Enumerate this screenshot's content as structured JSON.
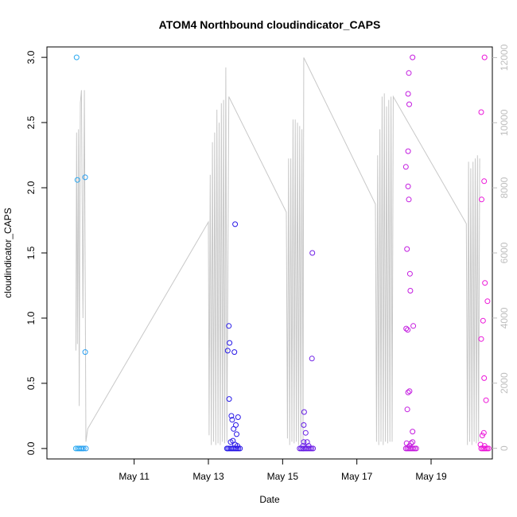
{
  "chart_data": {
    "type": "scatter",
    "title": "ATOM4 Northbound cloudindicator_CAPS",
    "xlabel": "Date",
    "ylabel": "cloudindicator_CAPS",
    "x_unit": "days since May 9 00:00",
    "xlim": [
      -0.35,
      11.65
    ],
    "ylim": [
      -0.08,
      3.08
    ],
    "y2lim": [
      -328,
      12328
    ],
    "x_ticks": [
      {
        "value": 2,
        "label": "May 11"
      },
      {
        "value": 4,
        "label": "May 13"
      },
      {
        "value": 6,
        "label": "May 15"
      },
      {
        "value": 8,
        "label": "May 17"
      },
      {
        "value": 10,
        "label": "May 19"
      }
    ],
    "y_ticks": [
      {
        "value": 0.0,
        "label": "0.0"
      },
      {
        "value": 0.5,
        "label": "0.5"
      },
      {
        "value": 1.0,
        "label": "1.0"
      },
      {
        "value": 1.5,
        "label": "1.5"
      },
      {
        "value": 2.0,
        "label": "2.0"
      },
      {
        "value": 2.5,
        "label": "2.5"
      },
      {
        "value": 3.0,
        "label": "3.0"
      }
    ],
    "y2_ticks": [
      {
        "value": 0,
        "label": "0"
      },
      {
        "value": 2000,
        "label": "2000"
      },
      {
        "value": 4000,
        "label": "4000"
      },
      {
        "value": 6000,
        "label": "6000"
      },
      {
        "value": 8000,
        "label": "8000"
      },
      {
        "value": 10000,
        "label": "10000"
      },
      {
        "value": 12000,
        "label": "12000"
      }
    ],
    "colors": {
      "secondary_line": "#c8c8c8",
      "gradient": [
        "#2aaaf0",
        "#1f44f5",
        "#2a14e6",
        "#7a22e6",
        "#c21ce0",
        "#ee14d8"
      ]
    },
    "point_style": "open-circle",
    "secondary_series": {
      "name": "secondary axis series",
      "points": [
        [
          0.43,
          3000
        ],
        [
          0.45,
          9700
        ],
        [
          0.47,
          3200
        ],
        [
          0.5,
          9800
        ],
        [
          0.52,
          1300
        ],
        [
          0.55,
          10600
        ],
        [
          0.58,
          11000
        ],
        [
          0.62,
          4000
        ],
        [
          0.66,
          11000
        ],
        [
          0.7,
          200
        ],
        [
          0.75,
          600
        ],
        [
          4.0,
          6950
        ],
        [
          4.02,
          400
        ],
        [
          4.05,
          8400
        ],
        [
          4.08,
          100
        ],
        [
          4.11,
          9400
        ],
        [
          4.14,
          200
        ],
        [
          4.17,
          9700
        ],
        [
          4.2,
          100
        ],
        [
          4.23,
          10400
        ],
        [
          4.26,
          150
        ],
        [
          4.29,
          10000
        ],
        [
          4.32,
          100
        ],
        [
          4.35,
          10600
        ],
        [
          4.38,
          200
        ],
        [
          4.41,
          10700
        ],
        [
          4.44,
          150
        ],
        [
          4.47,
          11700
        ],
        [
          4.5,
          200
        ],
        [
          4.55,
          10800
        ],
        [
          6.1,
          7250
        ],
        [
          6.13,
          300
        ],
        [
          6.16,
          8900
        ],
        [
          6.19,
          100
        ],
        [
          6.22,
          8900
        ],
        [
          6.25,
          200
        ],
        [
          6.28,
          10100
        ],
        [
          6.31,
          150
        ],
        [
          6.34,
          10100
        ],
        [
          6.37,
          200
        ],
        [
          6.4,
          10000
        ],
        [
          6.43,
          100
        ],
        [
          6.46,
          9900
        ],
        [
          6.49,
          200
        ],
        [
          6.52,
          9800
        ],
        [
          6.55,
          150
        ],
        [
          6.57,
          12000
        ],
        [
          8.5,
          7500
        ],
        [
          8.53,
          200
        ],
        [
          8.56,
          9000
        ],
        [
          8.59,
          100
        ],
        [
          8.62,
          9800
        ],
        [
          8.65,
          200
        ],
        [
          8.68,
          10800
        ],
        [
          8.71,
          100
        ],
        [
          8.74,
          10900
        ],
        [
          8.77,
          200
        ],
        [
          8.8,
          10500
        ],
        [
          8.83,
          150
        ],
        [
          8.86,
          10700
        ],
        [
          8.89,
          200
        ],
        [
          8.92,
          10800
        ],
        [
          8.95,
          200
        ],
        [
          8.98,
          10800
        ],
        [
          10.95,
          6900
        ],
        [
          10.98,
          100
        ],
        [
          11.01,
          8800
        ],
        [
          11.04,
          200
        ],
        [
          11.07,
          8600
        ],
        [
          11.1,
          100
        ],
        [
          11.13,
          8800
        ],
        [
          11.16,
          200
        ],
        [
          11.19,
          8900
        ],
        [
          11.22,
          150
        ],
        [
          11.25,
          9000
        ],
        [
          11.28,
          200
        ],
        [
          11.31,
          8900
        ]
      ]
    },
    "series": [
      {
        "name": "cloudindicator_CAPS",
        "points": [
          [
            0.45,
            3.0
          ],
          [
            0.47,
            2.06
          ],
          [
            0.68,
            2.08
          ],
          [
            0.68,
            0.74
          ],
          [
            0.43,
            0
          ],
          [
            0.48,
            0
          ],
          [
            0.52,
            0
          ],
          [
            0.56,
            0
          ],
          [
            0.6,
            0
          ],
          [
            0.64,
            0
          ],
          [
            0.7,
            0
          ],
          [
            4.55,
            0.94
          ],
          [
            4.52,
            0.75
          ],
          [
            4.57,
            0.81
          ],
          [
            4.62,
            0.25
          ],
          [
            4.64,
            0.22
          ],
          [
            4.68,
            0.15
          ],
          [
            4.7,
            0.74
          ],
          [
            4.72,
            1.72
          ],
          [
            4.74,
            0.18
          ],
          [
            4.76,
            0.11
          ],
          [
            4.8,
            0.24
          ],
          [
            4.56,
            0.38
          ],
          [
            4.6,
            0.05
          ],
          [
            4.66,
            0.06
          ],
          [
            4.72,
            0.03
          ],
          [
            4.78,
            0.02
          ],
          [
            4.5,
            0
          ],
          [
            4.53,
            0
          ],
          [
            4.57,
            0
          ],
          [
            4.61,
            0
          ],
          [
            4.65,
            0
          ],
          [
            4.69,
            0
          ],
          [
            4.73,
            0
          ],
          [
            4.77,
            0
          ],
          [
            4.81,
            0
          ],
          [
            4.85,
            0
          ],
          [
            6.58,
            0.28
          ],
          [
            6.57,
            0.18
          ],
          [
            6.62,
            0.12
          ],
          [
            6.57,
            0.05
          ],
          [
            6.66,
            0.05
          ],
          [
            6.8,
            1.5
          ],
          [
            6.79,
            0.69
          ],
          [
            6.55,
            0.02
          ],
          [
            6.7,
            0.02
          ],
          [
            6.46,
            0
          ],
          [
            6.5,
            0
          ],
          [
            6.54,
            0
          ],
          [
            6.58,
            0
          ],
          [
            6.62,
            0
          ],
          [
            6.66,
            0
          ],
          [
            6.7,
            0
          ],
          [
            6.74,
            0
          ],
          [
            6.78,
            0
          ],
          [
            6.82,
            0
          ],
          [
            9.5,
            3.0
          ],
          [
            9.4,
            2.88
          ],
          [
            9.38,
            2.72
          ],
          [
            9.41,
            2.64
          ],
          [
            9.38,
            2.28
          ],
          [
            9.32,
            2.16
          ],
          [
            9.38,
            2.01
          ],
          [
            9.4,
            1.91
          ],
          [
            9.35,
            1.53
          ],
          [
            9.43,
            1.34
          ],
          [
            9.44,
            1.21
          ],
          [
            9.33,
            0.92
          ],
          [
            9.37,
            0.91
          ],
          [
            9.52,
            0.94
          ],
          [
            9.38,
            0.43
          ],
          [
            9.42,
            0.44
          ],
          [
            9.36,
            0.3
          ],
          [
            9.5,
            0.13
          ],
          [
            9.34,
            0.04
          ],
          [
            9.46,
            0.04
          ],
          [
            9.5,
            0.05
          ],
          [
            9.42,
            0.02
          ],
          [
            9.32,
            0
          ],
          [
            9.36,
            0
          ],
          [
            9.4,
            0
          ],
          [
            9.44,
            0
          ],
          [
            9.48,
            0
          ],
          [
            9.52,
            0
          ],
          [
            9.56,
            0
          ],
          [
            9.6,
            0
          ],
          [
            11.44,
            3.0
          ],
          [
            11.35,
            2.58
          ],
          [
            11.43,
            2.05
          ],
          [
            11.36,
            1.91
          ],
          [
            11.45,
            1.27
          ],
          [
            11.52,
            1.13
          ],
          [
            11.4,
            0.98
          ],
          [
            11.35,
            0.84
          ],
          [
            11.43,
            0.54
          ],
          [
            11.48,
            0.37
          ],
          [
            11.42,
            0.12
          ],
          [
            11.38,
            0.1
          ],
          [
            11.33,
            0.03
          ],
          [
            11.44,
            0.02
          ],
          [
            11.35,
            0
          ],
          [
            11.39,
            0
          ],
          [
            11.43,
            0
          ],
          [
            11.47,
            0
          ],
          [
            11.51,
            0
          ],
          [
            11.55,
            0
          ]
        ]
      }
    ]
  }
}
